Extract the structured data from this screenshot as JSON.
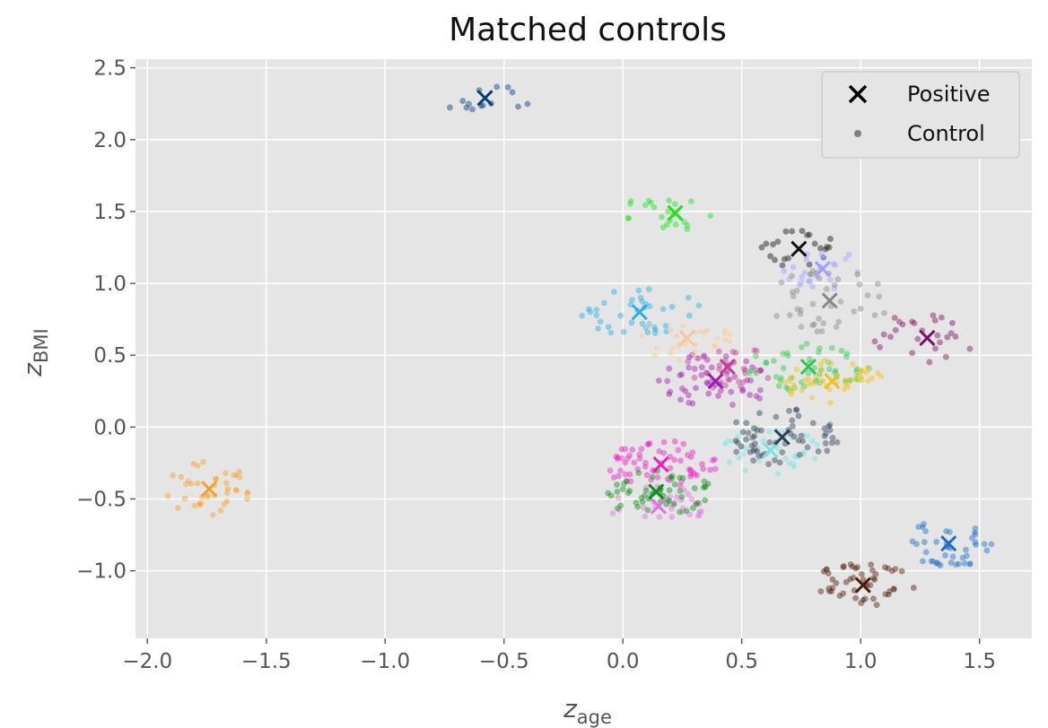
{
  "chart_data": {
    "type": "scatter",
    "title": "Matched controls",
    "xlabel": {
      "base": "z",
      "sub": "age"
    },
    "ylabel": {
      "base": "z",
      "sub": "BMI"
    },
    "xlim": [
      -2.05,
      1.72
    ],
    "ylim": [
      -1.47,
      2.56
    ],
    "xticks": [
      -2.0,
      -1.5,
      -1.0,
      -0.5,
      0.0,
      0.5,
      1.0,
      1.5
    ],
    "xtick_labels": [
      "−2.0",
      "−1.5",
      "−1.0",
      "−0.5",
      "0.0",
      "0.5",
      "1.0",
      "1.5"
    ],
    "yticks": [
      -1.0,
      -0.5,
      0.0,
      0.5,
      1.0,
      1.5,
      2.0,
      2.5
    ],
    "ytick_labels": [
      "−1.0",
      "−0.5",
      "0.0",
      "0.5",
      "1.0",
      "1.5",
      "2.0",
      "2.5"
    ],
    "grid": true,
    "legend": {
      "position": "top-right",
      "entries": [
        {
          "label": "Positive",
          "marker": "x",
          "color": "#000000"
        },
        {
          "label": "Control",
          "marker": "dot",
          "color": "#808080"
        }
      ]
    },
    "groups": [
      {
        "color": "#003f7f",
        "positive": [
          -0.58,
          2.29
        ],
        "spread": [
          0.22,
          0.09
        ],
        "n": 14
      },
      {
        "color": "#22dd22",
        "positive": [
          0.22,
          1.49
        ],
        "spread": [
          0.22,
          0.17
        ],
        "n": 22
      },
      {
        "color": "#111111",
        "positive": [
          0.74,
          1.24
        ],
        "spread": [
          0.16,
          0.14
        ],
        "n": 22
      },
      {
        "color": "#9e9eff",
        "positive": [
          0.84,
          1.1
        ],
        "spread": [
          0.18,
          0.14
        ],
        "n": 24
      },
      {
        "color": "#888888",
        "positive": [
          0.87,
          0.88
        ],
        "spread": [
          0.26,
          0.22
        ],
        "n": 40
      },
      {
        "color": "#29aee3",
        "positive": [
          0.07,
          0.8
        ],
        "spread": [
          0.26,
          0.17
        ],
        "n": 38
      },
      {
        "color": "#f5c79a",
        "positive": [
          0.27,
          0.62
        ],
        "spread": [
          0.2,
          0.17
        ],
        "n": 28
      },
      {
        "color": "#7c1061",
        "positive": [
          1.28,
          0.62
        ],
        "spread": [
          0.23,
          0.18
        ],
        "n": 26
      },
      {
        "color": "#c23c8f",
        "positive": [
          0.44,
          0.42
        ],
        "spread": [
          0.2,
          0.16
        ],
        "n": 30
      },
      {
        "color": "#a01aaf",
        "positive": [
          0.39,
          0.32
        ],
        "spread": [
          0.24,
          0.19
        ],
        "n": 50
      },
      {
        "color": "#2ec74f",
        "positive": [
          0.78,
          0.42
        ],
        "spread": [
          0.26,
          0.18
        ],
        "n": 55
      },
      {
        "color": "#f0c020",
        "positive": [
          0.88,
          0.32
        ],
        "spread": [
          0.22,
          0.16
        ],
        "n": 45
      },
      {
        "color": "#7ae0e0",
        "positive": [
          0.62,
          -0.16
        ],
        "spread": [
          0.23,
          0.17
        ],
        "n": 40
      },
      {
        "color": "#2e3d55",
        "positive": [
          0.67,
          -0.07
        ],
        "spread": [
          0.24,
          0.2
        ],
        "n": 60
      },
      {
        "color": "#e61fc5",
        "positive": [
          0.16,
          -0.26
        ],
        "spread": [
          0.24,
          0.17
        ],
        "n": 65
      },
      {
        "color": "#e36fe3",
        "positive": [
          0.15,
          -0.55
        ],
        "spread": [
          0.22,
          0.14
        ],
        "n": 30
      },
      {
        "color": "#118a1b",
        "positive": [
          0.14,
          -0.45
        ],
        "spread": [
          0.24,
          0.16
        ],
        "n": 55
      },
      {
        "color": "#f2a030",
        "positive": [
          -1.74,
          -0.43
        ],
        "spread": [
          0.19,
          0.19
        ],
        "n": 40
      },
      {
        "color": "#1a6fc4",
        "positive": [
          1.37,
          -0.81
        ],
        "spread": [
          0.2,
          0.17
        ],
        "n": 42
      },
      {
        "color": "#4b1a08",
        "positive": [
          1.01,
          -1.1
        ],
        "spread": [
          0.23,
          0.16
        ],
        "n": 50
      }
    ]
  }
}
